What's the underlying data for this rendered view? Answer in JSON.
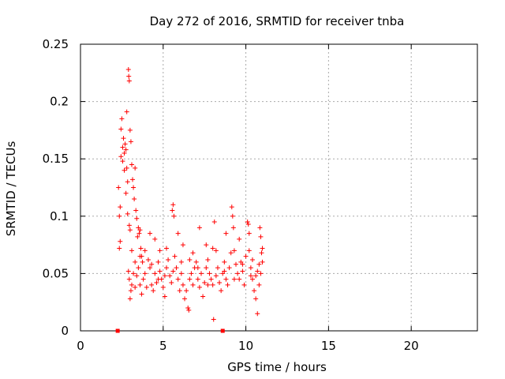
{
  "chart_data": {
    "type": "scatter",
    "title": "Day 272 of 2016, SRMTID for receiver tnba",
    "xlabel": "GPS time / hours",
    "ylabel": "SRMTID / TECUs",
    "xlim": [
      0,
      24
    ],
    "ylim": [
      0,
      0.25
    ],
    "xticks": [
      "0",
      "5",
      "10",
      "15",
      "20"
    ],
    "yticks": [
      "0",
      "0.05",
      "0.1",
      "0.15",
      "0.2",
      "0.25"
    ],
    "grid": true,
    "marker": "+",
    "color": "#ff0000",
    "points": [
      [
        2.3,
        0.125
      ],
      [
        2.35,
        0.1
      ],
      [
        2.4,
        0.108
      ],
      [
        2.45,
        0.176
      ],
      [
        2.5,
        0.185
      ],
      [
        2.55,
        0.16
      ],
      [
        2.6,
        0.168
      ],
      [
        2.65,
        0.155
      ],
      [
        2.7,
        0.163
      ],
      [
        2.75,
        0.158
      ],
      [
        2.8,
        0.142
      ],
      [
        2.85,
        0.13
      ],
      [
        2.9,
        0.228
      ],
      [
        2.92,
        0.222
      ],
      [
        2.95,
        0.218
      ],
      [
        2.8,
        0.191
      ],
      [
        3.0,
        0.175
      ],
      [
        3.05,
        0.165
      ],
      [
        3.1,
        0.145
      ],
      [
        3.15,
        0.132
      ],
      [
        2.45,
        0.152
      ],
      [
        2.55,
        0.148
      ],
      [
        2.65,
        0.14
      ],
      [
        2.75,
        0.12
      ],
      [
        2.85,
        0.102
      ],
      [
        2.95,
        0.092
      ],
      [
        3.0,
        0.088
      ],
      [
        3.1,
        0.07
      ],
      [
        3.2,
        0.125
      ],
      [
        3.25,
        0.115
      ],
      [
        3.3,
        0.142
      ],
      [
        3.35,
        0.105
      ],
      [
        3.4,
        0.098
      ],
      [
        3.45,
        0.082
      ],
      [
        3.5,
        0.09
      ],
      [
        3.55,
        0.085
      ],
      [
        3.6,
        0.088
      ],
      [
        3.65,
        0.072
      ],
      [
        3.7,
        0.065
      ],
      [
        3.75,
        0.06
      ],
      [
        2.35,
        0.072
      ],
      [
        2.4,
        0.078
      ],
      [
        2.9,
        0.052
      ],
      [
        2.95,
        0.045
      ],
      [
        3.0,
        0.028
      ],
      [
        3.05,
        0.035
      ],
      [
        3.1,
        0.04
      ],
      [
        3.2,
        0.05
      ],
      [
        3.3,
        0.038
      ],
      [
        3.4,
        0.048
      ],
      [
        3.5,
        0.055
      ],
      [
        3.6,
        0.04
      ],
      [
        3.7,
        0.032
      ],
      [
        3.8,
        0.045
      ],
      [
        3.9,
        0.05
      ],
      [
        4.0,
        0.038
      ],
      [
        4.1,
        0.062
      ],
      [
        4.2,
        0.055
      ],
      [
        4.3,
        0.04
      ],
      [
        4.4,
        0.035
      ],
      [
        4.5,
        0.05
      ],
      [
        4.6,
        0.042
      ],
      [
        4.7,
        0.06
      ],
      [
        4.8,
        0.052
      ],
      [
        4.9,
        0.045
      ],
      [
        5.0,
        0.038
      ],
      [
        5.1,
        0.03
      ],
      [
        5.2,
        0.055
      ],
      [
        5.3,
        0.062
      ],
      [
        5.4,
        0.048
      ],
      [
        5.5,
        0.042
      ],
      [
        5.55,
        0.105
      ],
      [
        5.6,
        0.11
      ],
      [
        5.65,
        0.1
      ],
      [
        5.7,
        0.065
      ],
      [
        5.8,
        0.055
      ],
      [
        5.9,
        0.045
      ],
      [
        6.0,
        0.035
      ],
      [
        6.1,
        0.05
      ],
      [
        6.2,
        0.04
      ],
      [
        6.3,
        0.028
      ],
      [
        6.4,
        0.035
      ],
      [
        6.5,
        0.02
      ],
      [
        6.55,
        0.018
      ],
      [
        6.6,
        0.045
      ],
      [
        6.7,
        0.05
      ],
      [
        6.8,
        0.04
      ],
      [
        6.9,
        0.055
      ],
      [
        7.0,
        0.06
      ],
      [
        7.1,
        0.045
      ],
      [
        7.2,
        0.038
      ],
      [
        7.3,
        0.05
      ],
      [
        7.4,
        0.03
      ],
      [
        7.5,
        0.042
      ],
      [
        7.6,
        0.055
      ],
      [
        7.7,
        0.062
      ],
      [
        7.8,
        0.05
      ],
      [
        7.9,
        0.045
      ],
      [
        8.0,
        0.04
      ],
      [
        8.05,
        0.01
      ],
      [
        8.1,
        0.095
      ],
      [
        8.2,
        0.07
      ],
      [
        8.3,
        0.055
      ],
      [
        8.4,
        0.042
      ],
      [
        8.5,
        0.035
      ],
      [
        8.6,
        0.05
      ],
      [
        8.7,
        0.06
      ],
      [
        8.8,
        0.045
      ],
      [
        8.9,
        0.04
      ],
      [
        9.0,
        0.055
      ],
      [
        9.1,
        0.068
      ],
      [
        9.15,
        0.108
      ],
      [
        9.2,
        0.1
      ],
      [
        9.25,
        0.09
      ],
      [
        9.3,
        0.07
      ],
      [
        9.4,
        0.058
      ],
      [
        9.5,
        0.05
      ],
      [
        9.6,
        0.045
      ],
      [
        9.7,
        0.06
      ],
      [
        9.8,
        0.052
      ],
      [
        9.9,
        0.04
      ],
      [
        10.0,
        0.065
      ],
      [
        10.1,
        0.095
      ],
      [
        10.15,
        0.093
      ],
      [
        10.2,
        0.07
      ],
      [
        10.3,
        0.055
      ],
      [
        10.4,
        0.045
      ],
      [
        10.5,
        0.035
      ],
      [
        10.6,
        0.028
      ],
      [
        10.7,
        0.015
      ],
      [
        10.8,
        0.04
      ],
      [
        10.85,
        0.09
      ],
      [
        10.9,
        0.082
      ],
      [
        10.95,
        0.068
      ],
      [
        11.0,
        0.06
      ],
      [
        11.0,
        0.072
      ],
      [
        10.9,
        0.05
      ],
      [
        10.8,
        0.058
      ],
      [
        10.6,
        0.048
      ],
      [
        10.4,
        0.062
      ],
      [
        4.2,
        0.085
      ],
      [
        4.5,
        0.08
      ],
      [
        4.8,
        0.07
      ],
      [
        5.2,
        0.072
      ],
      [
        5.9,
        0.085
      ],
      [
        6.2,
        0.075
      ],
      [
        6.8,
        0.068
      ],
      [
        7.2,
        0.09
      ],
      [
        7.6,
        0.075
      ],
      [
        8.0,
        0.072
      ],
      [
        8.8,
        0.085
      ],
      [
        9.6,
        0.08
      ],
      [
        10.2,
        0.085
      ],
      [
        3.3,
        0.06
      ],
      [
        3.6,
        0.065
      ],
      [
        3.9,
        0.07
      ],
      [
        4.3,
        0.058
      ],
      [
        4.7,
        0.045
      ],
      [
        5.1,
        0.048
      ],
      [
        5.6,
        0.052
      ],
      [
        6.1,
        0.06
      ],
      [
        6.6,
        0.062
      ],
      [
        7.1,
        0.055
      ],
      [
        7.7,
        0.04
      ],
      [
        8.2,
        0.048
      ],
      [
        8.7,
        0.052
      ],
      [
        9.3,
        0.045
      ],
      [
        9.8,
        0.058
      ],
      [
        10.3,
        0.048
      ],
      [
        10.7,
        0.052
      ]
    ],
    "bottom_markers": [
      2.25,
      8.6
    ]
  }
}
